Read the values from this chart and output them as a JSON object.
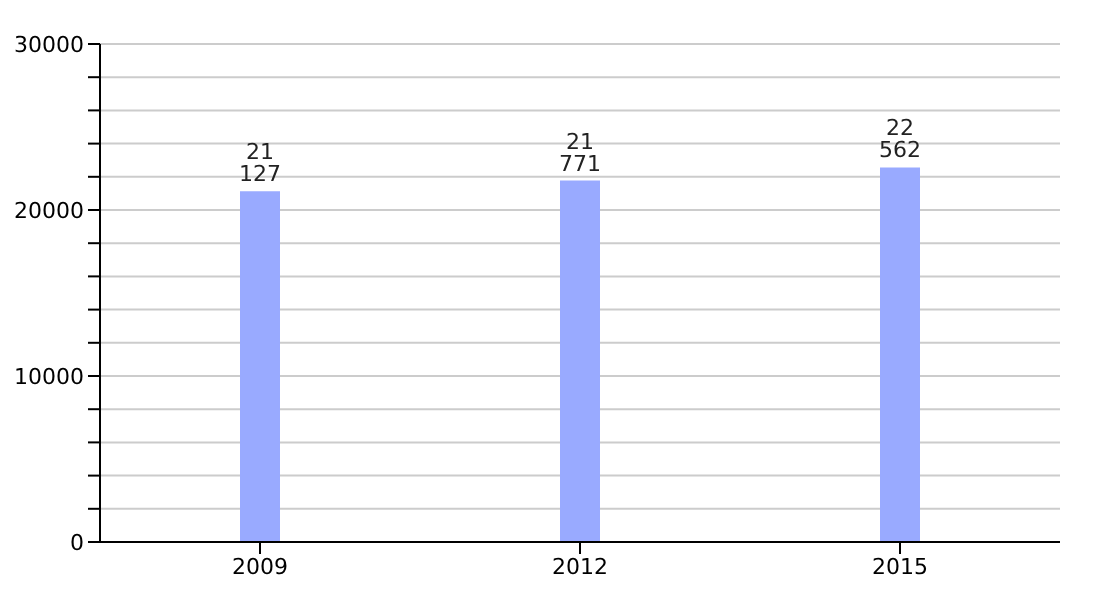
{
  "chart_data": {
    "type": "bar",
    "categories": [
      "2009",
      "2012",
      "2015"
    ],
    "values": [
      21127,
      21771,
      22562
    ],
    "value_labels": [
      "21 127",
      "21 771",
      "22 562"
    ],
    "color": "#99aaff",
    "ylim": [
      0,
      30000
    ],
    "yticks": [
      0,
      {
        "value": 2000,
        "label": null
      },
      {
        "value": 4000,
        "label": null
      },
      {
        "value": 6000,
        "label": null
      },
      {
        "value": 8000,
        "label": null
      },
      10000,
      {
        "value": 12000,
        "label": null
      },
      {
        "value": 14000,
        "label": null
      },
      {
        "value": 16000,
        "label": null
      },
      {
        "value": 18000,
        "label": null
      },
      20000,
      {
        "value": 22000,
        "label": null
      },
      {
        "value": 24000,
        "label": null
      },
      {
        "value": 26000,
        "label": null
      },
      {
        "value": 28000,
        "label": null
      },
      30000
    ],
    "grid": "y"
  }
}
